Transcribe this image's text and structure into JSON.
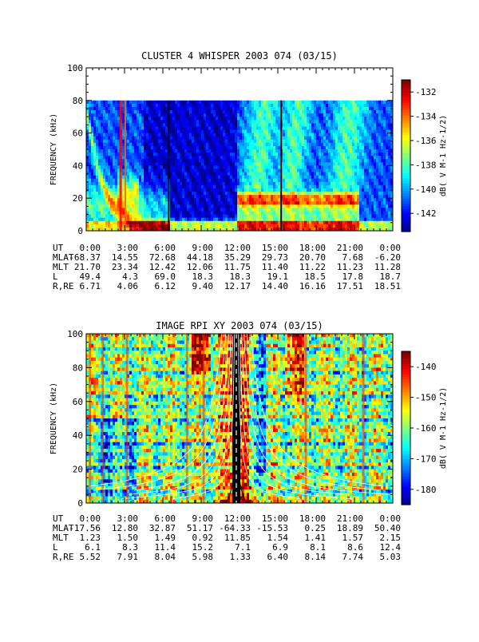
{
  "charts": [
    {
      "title": "CLUSTER 4 WHISPER 2003 074 (03/15)",
      "ylabel": "FREQUENCY (kHz)",
      "ylim": [
        0,
        100
      ],
      "yticks": [
        "0",
        "20",
        "40",
        "60",
        "80",
        "100"
      ],
      "data_top_khz": 80,
      "colorbar": {
        "label": "dB( V M⁻¹ Hz⁻¹ᐟ²)",
        "label_plain": "dB( V M-1 Hz-1/2)",
        "ticks": [
          "-132",
          "-134",
          "-136",
          "-138",
          "-140",
          "-142"
        ],
        "range": [
          -143.5,
          -131
        ]
      },
      "ephemeris": {
        "labels": [
          "UT",
          "MLAT",
          "MLT",
          "L",
          "R,RE"
        ],
        "ut": [
          "0:00",
          "3:00",
          "6:00",
          "9:00",
          "12:00",
          "15:00",
          "18:00",
          "21:00",
          "0:00"
        ],
        "mlat": [
          "-68.37",
          "14.55",
          "72.68",
          "44.18",
          "35.29",
          "29.73",
          "20.70",
          "7.68",
          "-6.20"
        ],
        "mlt": [
          "21.70",
          "23.34",
          "12.42",
          "12.06",
          "11.75",
          "11.40",
          "11.22",
          "11.23",
          "11.28"
        ],
        "l": [
          "49.4",
          "4.3",
          "69.0",
          "18.3",
          "18.3",
          "19.1",
          "18.5",
          "17.8",
          "18.7"
        ],
        "rre": [
          "6.71",
          "4.06",
          "6.12",
          "9.40",
          "12.17",
          "14.40",
          "16.16",
          "17.51",
          "18.51"
        ]
      }
    },
    {
      "title": "IMAGE RPI XY 2003 074 (03/15)",
      "ylabel": "FREQUENCY (kHz)",
      "ylim": [
        0,
        100
      ],
      "yticks": [
        "0",
        "20",
        "40",
        "60",
        "80",
        "100"
      ],
      "data_top_khz": 100,
      "colorbar": {
        "label": "dB( V M⁻¹ Hz⁻¹ᐟ²)",
        "label_plain": "dB( V M-1 Hz-1/2)",
        "ticks": [
          "-140",
          "-150",
          "-160",
          "-170",
          "-180"
        ],
        "range": [
          -185,
          -135
        ]
      },
      "ephemeris": {
        "labels": [
          "UT",
          "MLAT",
          "MLT",
          "L",
          "R,RE"
        ],
        "ut": [
          "0:00",
          "3:00",
          "6:00",
          "9:00",
          "12:00",
          "15:00",
          "18:00",
          "21:00",
          "0:00"
        ],
        "mlat": [
          "-17.56",
          "12.80",
          "32.87",
          "51.17",
          "-64.33",
          "-15.53",
          "0.25",
          "18.89",
          "50.40"
        ],
        "mlt": [
          "1.23",
          "1.50",
          "1.49",
          "0.92",
          "11.85",
          "1.54",
          "1.41",
          "1.57",
          "2.15"
        ],
        "l": [
          "6.1",
          "8.3",
          "11.4",
          "15.2",
          "7.1",
          "6.9",
          "8.1",
          "8.6",
          "12.4"
        ],
        "rre": [
          "5.52",
          "7.91",
          "8.04",
          "5.98",
          "1.33",
          "6.40",
          "8.14",
          "7.74",
          "5.03"
        ]
      }
    }
  ],
  "chart_data": [
    {
      "type": "heatmap",
      "title": "CLUSTER 4 WHISPER 2003 074 (03/15)",
      "ylabel": "FREQUENCY (kHz)",
      "ylim": [
        0,
        100
      ],
      "x_ticks": [
        "0:00",
        "3:00",
        "6:00",
        "9:00",
        "12:00",
        "15:00",
        "18:00",
        "21:00",
        "0:00"
      ],
      "colorbar_range_db": [
        -143.5,
        -131
      ]
    },
    {
      "type": "heatmap",
      "title": "IMAGE RPI XY 2003 074 (03/15)",
      "ylabel": "FREQUENCY (kHz)",
      "ylim": [
        0,
        100
      ],
      "x_ticks": [
        "0:00",
        "3:00",
        "6:00",
        "9:00",
        "12:00",
        "15:00",
        "18:00",
        "21:00",
        "0:00"
      ],
      "colorbar_range_db": [
        -185,
        -135
      ]
    }
  ]
}
